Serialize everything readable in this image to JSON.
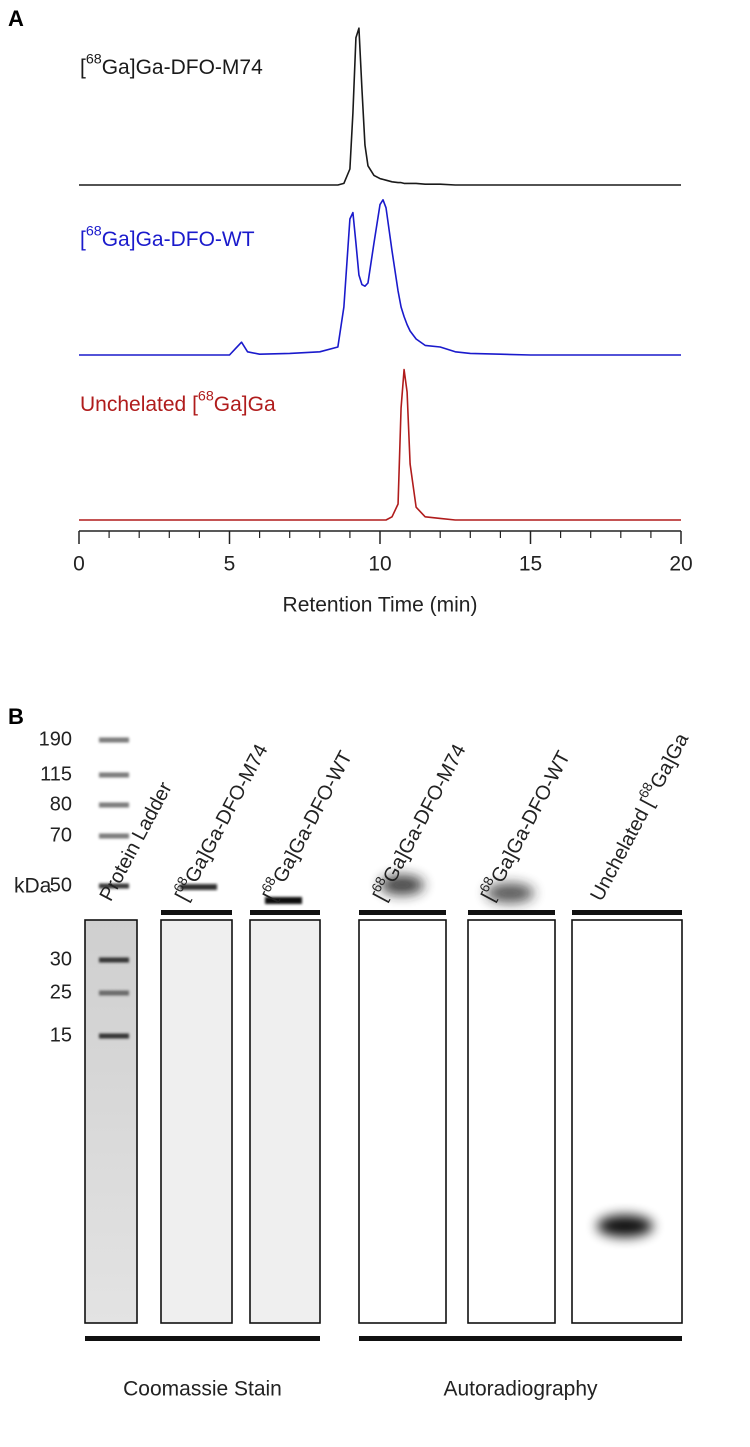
{
  "panel_labels": [
    "A",
    "B"
  ],
  "chart_data": {
    "type": "line",
    "xlabel": "Retention Time (min)",
    "x": [
      0,
      1,
      2,
      3,
      4,
      5,
      5.2,
      5.4,
      5.6,
      6,
      7,
      8,
      8.6,
      8.8,
      9.0,
      9.1,
      9.2,
      9.3,
      9.4,
      9.5,
      9.6,
      9.8,
      10.0,
      10.1,
      10.2,
      10.4,
      10.6,
      10.7,
      10.8,
      10.9,
      11.0,
      11.2,
      11.5,
      12,
      12.5,
      13,
      14,
      15,
      16,
      17,
      18,
      19,
      20
    ],
    "series": [
      {
        "name": "[68Ga]Ga-DFO-M74",
        "color": "#1a1a1a",
        "values": [
          0,
          0,
          0,
          0,
          0,
          0,
          0,
          0,
          0,
          0,
          0,
          0,
          0,
          1,
          10,
          45,
          92,
          98,
          60,
          25,
          12,
          6,
          4,
          3.5,
          3,
          2,
          1.5,
          1.5,
          1,
          1,
          1,
          1,
          0.5,
          0.5,
          0,
          0,
          0,
          0,
          0,
          0,
          0,
          0,
          0
        ]
      },
      {
        "name": "[68Ga]Ga-DFO-WT",
        "color": "#1a1acc",
        "values": [
          0,
          0,
          0,
          0,
          0,
          0,
          4,
          8,
          2,
          0.5,
          1,
          2,
          5,
          30,
          85,
          89,
          70,
          50,
          44,
          43,
          45,
          70,
          94,
          97,
          92,
          65,
          40,
          30,
          24,
          19,
          15,
          10,
          6,
          5,
          2,
          1,
          0.5,
          0,
          0,
          0,
          0,
          0,
          0
        ]
      },
      {
        "name": "Unchelated [68Ga]Ga",
        "color": "#b01c1c",
        "values": [
          0,
          0,
          0,
          0,
          0,
          0,
          0,
          0,
          0,
          0,
          0,
          0,
          0,
          0,
          0,
          0,
          0,
          0,
          0,
          0,
          0,
          0,
          0,
          0,
          0,
          2,
          10,
          70,
          94,
          80,
          35,
          8,
          2,
          1,
          0,
          0,
          0,
          0,
          0,
          0,
          0,
          0,
          0
        ]
      }
    ],
    "xlim": [
      0,
      20
    ],
    "xticks": [
      0,
      5,
      10,
      15,
      20
    ],
    "xminorticks": [
      1,
      2,
      3,
      4,
      6,
      7,
      8,
      9,
      11,
      12,
      13,
      14,
      16,
      17,
      18,
      19
    ]
  },
  "gel": {
    "ylabel": "kDa",
    "markers": [
      190,
      115,
      80,
      70,
      50,
      30,
      25,
      15
    ],
    "lane_labels": [
      "Protein Ladder",
      "[68Ga]Ga-DFO-M74",
      "[68Ga]Ga-DFO-WT",
      "[68Ga]Ga-DFO-M74",
      "[68Ga]Ga-DFO-WT",
      "Unchelated [68Ga]Ga"
    ],
    "group_labels": [
      "Coomassie Stain",
      "Autoradiography"
    ]
  }
}
